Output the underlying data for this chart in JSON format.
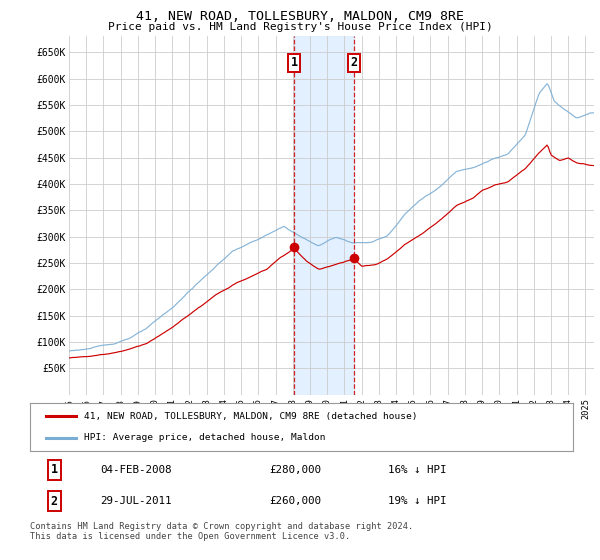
{
  "title": "41, NEW ROAD, TOLLESBURY, MALDON, CM9 8RE",
  "subtitle": "Price paid vs. HM Land Registry's House Price Index (HPI)",
  "ylim": [
    0,
    680000
  ],
  "yticks": [
    50000,
    100000,
    150000,
    200000,
    250000,
    300000,
    350000,
    400000,
    450000,
    500000,
    550000,
    600000,
    650000
  ],
  "xlim_start": 1995.0,
  "xlim_end": 2025.5,
  "transaction1_x": 2008.09,
  "transaction1_y": 280000,
  "transaction2_x": 2011.57,
  "transaction2_y": 260000,
  "shade_xmin": 2008.09,
  "shade_xmax": 2011.57,
  "legend_line1": "41, NEW ROAD, TOLLESBURY, MALDON, CM9 8RE (detached house)",
  "legend_line2": "HPI: Average price, detached house, Maldon",
  "footnote": "Contains HM Land Registry data © Crown copyright and database right 2024.\nThis data is licensed under the Open Government Licence v3.0.",
  "hpi_color": "#7aadd4",
  "price_color": "#cc0000",
  "shade_color": "#ddeeff",
  "grid_color": "#cccccc",
  "background_color": "#ffffff"
}
